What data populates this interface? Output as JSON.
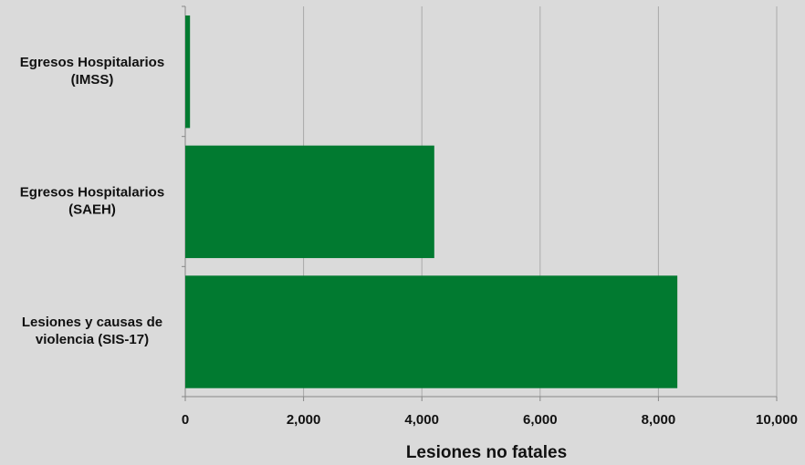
{
  "chart_data": {
    "type": "hbar",
    "categories": [
      [
        "Egresos Hospitalarios",
        "(IMSS)"
      ],
      [
        "Egresos Hospitalarios",
        "(SAEH)"
      ],
      [
        "Lesiones y causas de",
        "violencia (SIS-17)"
      ]
    ],
    "values": [
      80,
      4210,
      8320
    ],
    "color": "#017a30",
    "xlim": [
      0,
      10000
    ],
    "xticks": [
      0,
      {
        "value": 2000,
        "label": "2,000"
      },
      {
        "value": 4000,
        "label": "4,000"
      },
      {
        "value": 6000,
        "label": "6,000"
      },
      {
        "value": 8000,
        "label": "8,000"
      },
      {
        "value": 10000,
        "label": "10,000"
      }
    ],
    "xlabel": "Lesiones no fatales",
    "grid": true
  }
}
